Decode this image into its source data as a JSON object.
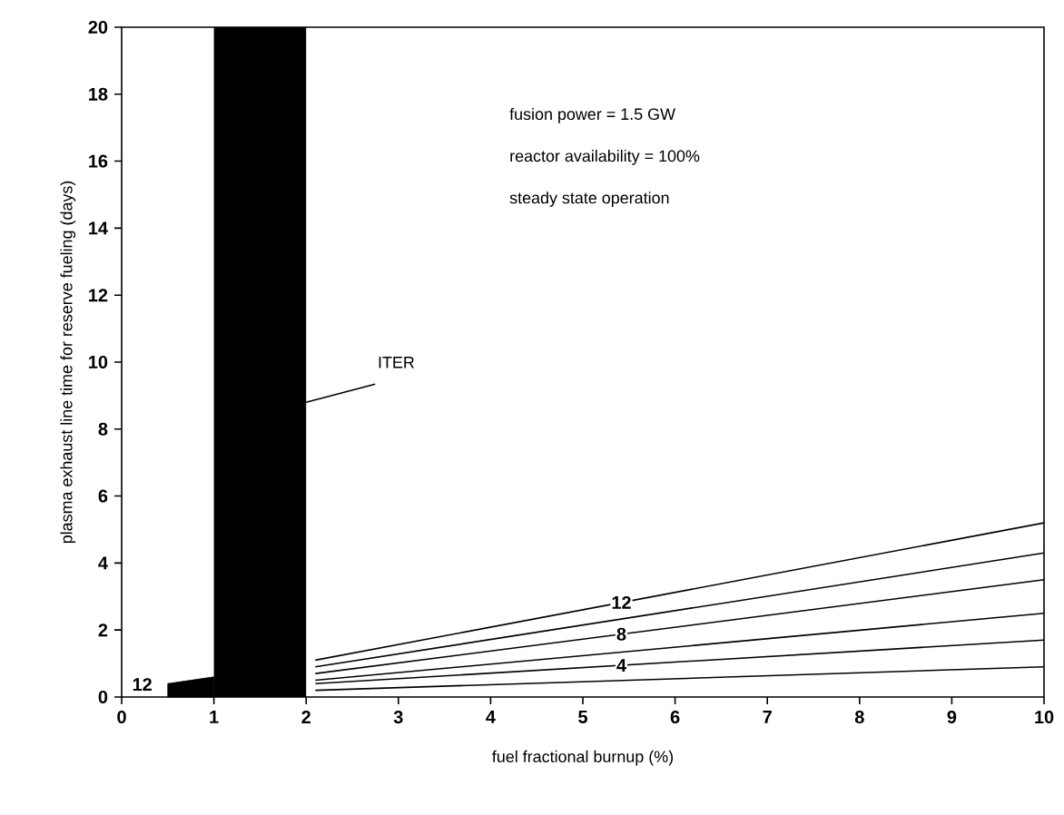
{
  "chart_data": {
    "type": "line",
    "xlabel": "fuel fractional burnup (%)",
    "ylabel": "plasma exhaust line time for reserve fueling (days)",
    "xlim": [
      0,
      10
    ],
    "ylim": [
      0,
      20
    ],
    "xticks": [
      0,
      1,
      2,
      3,
      4,
      5,
      6,
      7,
      8,
      9,
      10
    ],
    "yticks": [
      0,
      2,
      4,
      6,
      8,
      10,
      12,
      14,
      16,
      18,
      20
    ],
    "series": [
      {
        "type": "area",
        "color": "#000000",
        "x": [
          0.5,
          1
        ],
        "values": [
          0.4,
          0.6
        ]
      },
      {
        "name": "12",
        "color": "#000000",
        "x": [
          2.1,
          10
        ],
        "values": [
          1.1,
          5.2
        ]
      },
      {
        "color": "#000000",
        "x": [
          2.1,
          10
        ],
        "values": [
          0.9,
          4.3
        ]
      },
      {
        "name": "8",
        "color": "#000000",
        "x": [
          2.1,
          10
        ],
        "values": [
          0.7,
          3.5
        ]
      },
      {
        "color": "#000000",
        "x": [
          2.1,
          10
        ],
        "values": [
          0.5,
          2.5
        ]
      },
      {
        "name": "4",
        "color": "#000000",
        "x": [
          2.1,
          10
        ],
        "values": [
          0.4,
          1.7
        ]
      },
      {
        "color": "#000000",
        "x": [
          2.1,
          10
        ],
        "values": [
          0.2,
          0.9
        ]
      }
    ],
    "bands": [
      {
        "axis": "x",
        "from": 1,
        "to": 2,
        "color": "#000000"
      }
    ],
    "annotations": [
      {
        "text": "ITER",
        "x": 2,
        "y": 8.8
      },
      "fusion power = 1.5 GW",
      "reactor availability = 100%",
      "steady state operation",
      "12"
    ]
  }
}
